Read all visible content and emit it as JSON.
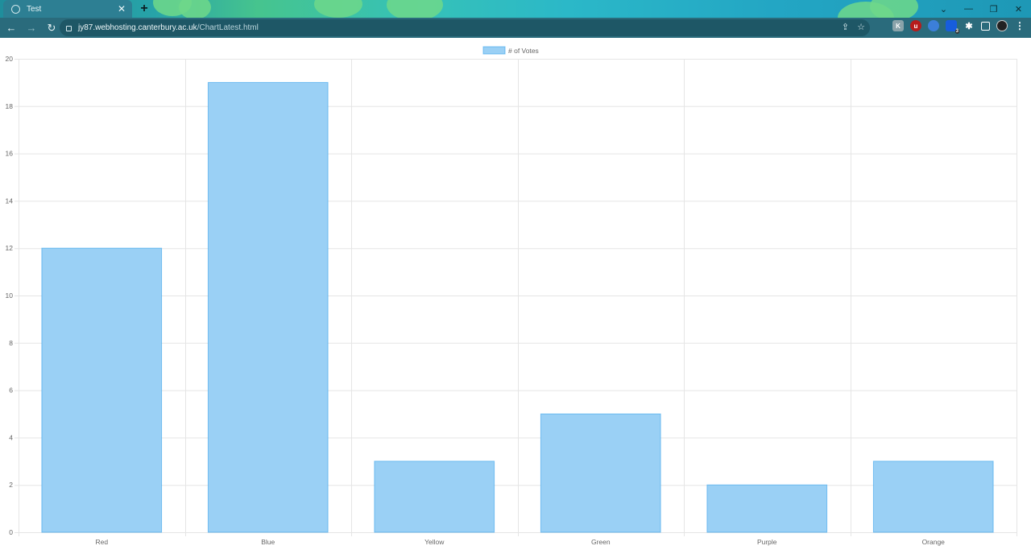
{
  "browser": {
    "tab_title": "Test",
    "url_host": "jy87.webhosting.canterbury.ac.uk",
    "url_path": "/ChartLatest.html",
    "extension_badge": "3"
  },
  "colors": {
    "bar_fill": "#9ad0f5",
    "bar_stroke": "#36a2eb",
    "grid": "#e5e5e5",
    "tick_text": "#666666",
    "tab_bg": "#2d7f93",
    "toolbar_bg": "#2a6b7c"
  },
  "chart_data": {
    "type": "bar",
    "categories": [
      "Red",
      "Blue",
      "Yellow",
      "Green",
      "Purple",
      "Orange"
    ],
    "series": [
      {
        "name": "# of Votes",
        "values": [
          12,
          19,
          3,
          5,
          2,
          3
        ]
      }
    ],
    "ylim": [
      0,
      20
    ],
    "yticks": [
      0,
      2,
      4,
      6,
      8,
      10,
      12,
      14,
      16,
      18,
      20
    ],
    "grid": true,
    "legend_position": "top-center"
  }
}
